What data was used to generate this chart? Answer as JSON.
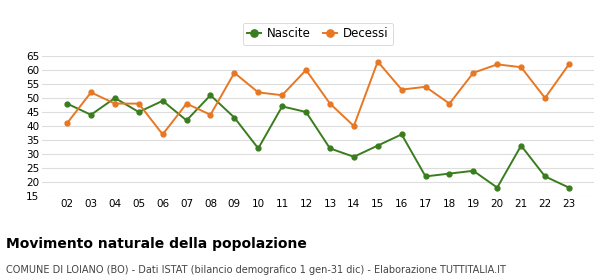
{
  "years": [
    "02",
    "03",
    "04",
    "05",
    "06",
    "07",
    "08",
    "09",
    "10",
    "11",
    "12",
    "13",
    "14",
    "15",
    "16",
    "17",
    "18",
    "19",
    "20",
    "21",
    "22",
    "23"
  ],
  "nascite": [
    48,
    44,
    50,
    45,
    49,
    42,
    51,
    43,
    32,
    47,
    45,
    32,
    29,
    33,
    37,
    22,
    23,
    24,
    18,
    33,
    22,
    18
  ],
  "decessi": [
    41,
    52,
    48,
    48,
    37,
    48,
    44,
    59,
    52,
    51,
    60,
    48,
    40,
    63,
    53,
    54,
    48,
    59,
    62,
    61,
    50,
    62
  ],
  "nascite_color": "#3a7d1e",
  "decessi_color": "#e87722",
  "background_color": "#ffffff",
  "grid_color": "#dddddd",
  "ylim": [
    15,
    65
  ],
  "yticks": [
    15,
    20,
    25,
    30,
    35,
    40,
    45,
    50,
    55,
    60,
    65
  ],
  "title": "Movimento naturale della popolazione",
  "subtitle": "COMUNE DI LOIANO (BO) - Dati ISTAT (bilancio demografico 1 gen-31 dic) - Elaborazione TUTTITALIA.IT",
  "title_fontsize": 10,
  "subtitle_fontsize": 7,
  "legend_fontsize": 8.5,
  "tick_fontsize": 7.5,
  "marker_size": 3.5,
  "line_width": 1.4
}
